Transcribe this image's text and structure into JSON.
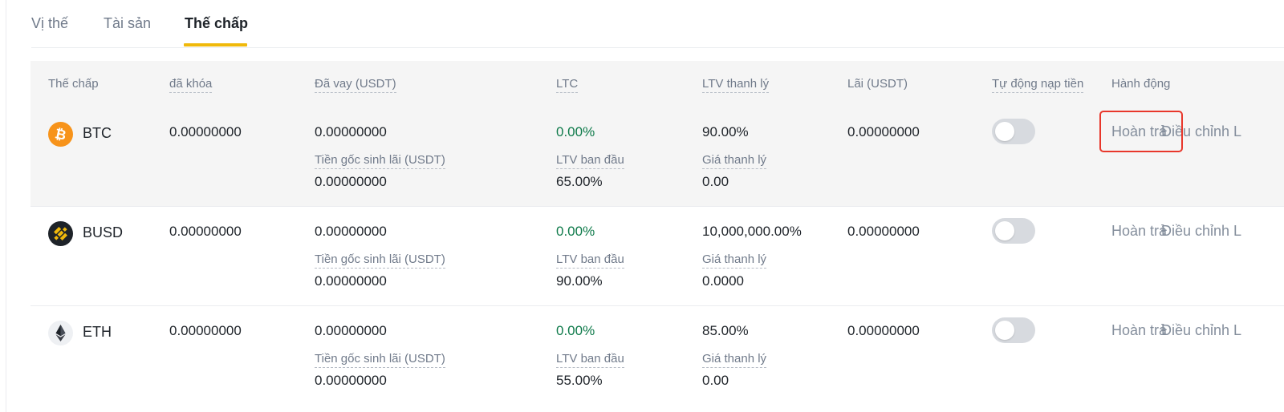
{
  "tabs": [
    {
      "label": "Vị thế",
      "active": false
    },
    {
      "label": "Tài sản",
      "active": false
    },
    {
      "label": "Thế chấp",
      "active": true
    }
  ],
  "colors": {
    "accent": "#f0b90b",
    "positive": "#0e7a4a",
    "highlight_box": "#e8372b",
    "header_bg": "#f5f5f5"
  },
  "table": {
    "headers": {
      "collateral": "Thế chấp",
      "locked": "đã khóa",
      "borrowed": "Đã vay (USDT)",
      "ltc": "LTC",
      "liq_ltv": "LTV thanh lý",
      "interest": "Lãi (USDT)",
      "auto_topup": "Tự động nạp tiền",
      "action": "Hành động"
    },
    "sub_labels": {
      "principal": "Tiền gốc sinh lãi (USDT)",
      "initial_ltv": "LTV ban đầu",
      "liq_price": "Giá thanh lý"
    },
    "rows": [
      {
        "icon": "btc-coin-icon",
        "asset": "BTC",
        "locked": "0.00000000",
        "borrowed": "0.00000000",
        "principal": "0.00000000",
        "ltc": "0.00%",
        "initial_ltv": "65.00%",
        "liq_ltv": "90.00%",
        "liq_price": "0.00",
        "interest": "0.00000000",
        "auto_topup_on": false,
        "repay": "Hoàn trả",
        "adjust": "Điều chỉnh L"
      },
      {
        "icon": "busd-coin-icon",
        "asset": "BUSD",
        "locked": "0.00000000",
        "borrowed": "0.00000000",
        "principal": "0.00000000",
        "ltc": "0.00%",
        "initial_ltv": "90.00%",
        "liq_ltv": "10,000,000.00%",
        "liq_price": "0.0000",
        "interest": "0.00000000",
        "auto_topup_on": false,
        "repay": "Hoàn trả",
        "adjust": "Điều chỉnh L"
      },
      {
        "icon": "eth-coin-icon",
        "asset": "ETH",
        "locked": "0.00000000",
        "borrowed": "0.00000000",
        "principal": "0.00000000",
        "ltc": "0.00%",
        "initial_ltv": "55.00%",
        "liq_ltv": "85.00%",
        "liq_price": "0.00",
        "interest": "0.00000000",
        "auto_topup_on": false,
        "repay": "Hoàn trả",
        "adjust": "Điều chỉnh L"
      }
    ]
  }
}
